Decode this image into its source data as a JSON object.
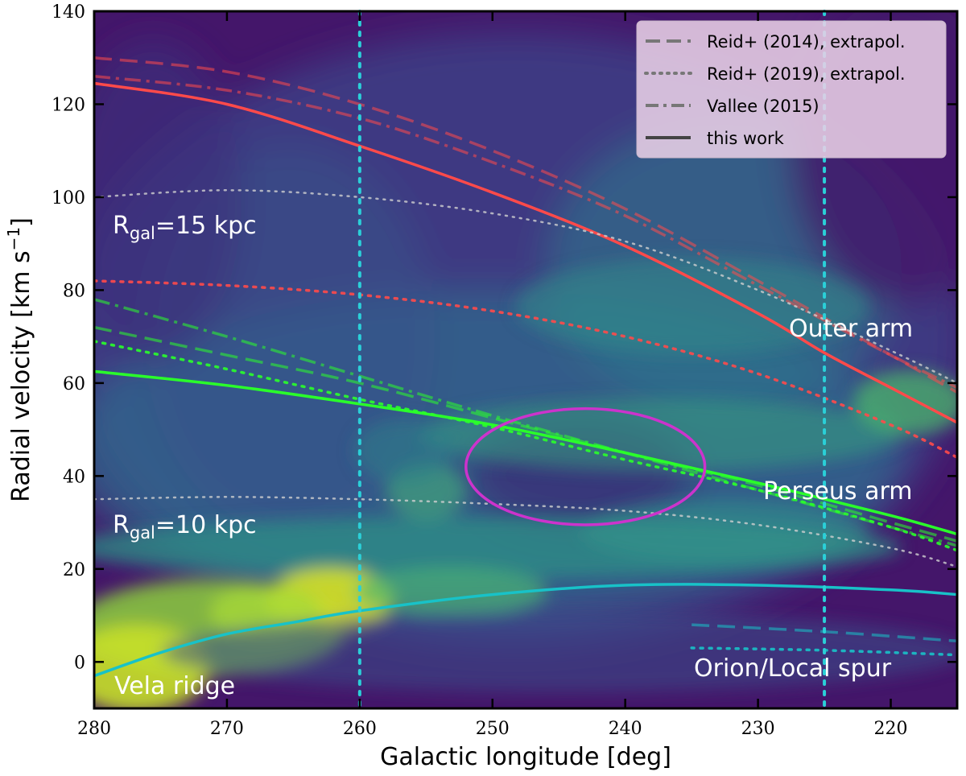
{
  "chart_data": {
    "type": "line",
    "xlabel": "Galactic longitude [deg]",
    "ylabel": "Radial velocity [km s",
    "ylabel_sup": "−1",
    "ylabel_close": "]",
    "xlim": [
      280,
      215
    ],
    "ylim": [
      -10,
      140
    ],
    "xticks": [
      280,
      270,
      260,
      250,
      240,
      230,
      220
    ],
    "yticks": [
      0,
      20,
      40,
      60,
      80,
      100,
      120,
      140
    ],
    "x_direction": "reversed",
    "background": "heatmap (viridis), bright emission along Vela ridge and Perseus/Outer arms",
    "colors": {
      "outer": "#ff4a4a",
      "perseus": "#2aff2a",
      "local": "#18c2c8",
      "rgal": "#cfcfcf",
      "vline": "#2ad0d8",
      "ellipse": "#cc33cc"
    },
    "legend": {
      "placement": "top-right",
      "entries": [
        {
          "label": "Reid+ (2014), extrapol.",
          "style": "dashed"
        },
        {
          "label": "Reid+ (2019), extrapol.",
          "style": "dotted"
        },
        {
          "label": "Vallee (2015)",
          "style": "dashdot"
        },
        {
          "label": "this work",
          "style": "solid"
        }
      ]
    },
    "vertical_lines": [
      260,
      225
    ],
    "ellipse": {
      "center": [
        243,
        42
      ],
      "x_halfwidth": 9,
      "y_halfwidth": 12.5
    },
    "series": [
      {
        "arm": "outer",
        "style": "solid",
        "x": [
          280,
          270,
          260,
          250,
          240,
          230,
          225,
          220,
          215
        ],
        "y": [
          124.5,
          120,
          111,
          101,
          89.5,
          75,
          66.5,
          59,
          51.5
        ]
      },
      {
        "arm": "outer",
        "style": "dashed",
        "x": [
          280,
          270,
          260,
          250,
          240,
          230,
          220,
          215
        ],
        "y": [
          130,
          127,
          120,
          110,
          97.5,
          82,
          66,
          58
        ]
      },
      {
        "arm": "outer",
        "style": "dashdot",
        "x": [
          280,
          270,
          260,
          250,
          240,
          230,
          220,
          215
        ],
        "y": [
          126,
          123,
          117,
          107.5,
          96,
          81,
          66,
          59
        ]
      },
      {
        "arm": "outer",
        "style": "dotted",
        "x": [
          280,
          270,
          260,
          250,
          240,
          230,
          220,
          215
        ],
        "y": [
          82,
          81,
          79,
          75.5,
          70,
          62,
          51,
          44
        ]
      },
      {
        "arm": "perseus",
        "style": "solid",
        "x": [
          280,
          270,
          260,
          250,
          240,
          230,
          220,
          215
        ],
        "y": [
          62.5,
          59.5,
          55.5,
          51,
          45,
          38.5,
          31.5,
          27.5
        ]
      },
      {
        "arm": "perseus",
        "style": "dashed",
        "x": [
          280,
          270,
          260,
          250,
          240,
          230,
          220,
          215
        ],
        "y": [
          72,
          66,
          60,
          52.5,
          45,
          38,
          30,
          26
        ]
      },
      {
        "arm": "perseus",
        "style": "dashdot",
        "x": [
          280,
          270,
          260,
          250,
          240,
          230,
          220,
          215
        ],
        "y": [
          78,
          70,
          61.5,
          53,
          45,
          37,
          29,
          25
        ]
      },
      {
        "arm": "perseus",
        "style": "dotted",
        "x": [
          280,
          270,
          260,
          250,
          240,
          230,
          220,
          215
        ],
        "y": [
          69,
          63,
          56.5,
          50.5,
          43.5,
          37,
          29,
          24
        ]
      },
      {
        "arm": "local",
        "style": "solid",
        "x": [
          280,
          275,
          270,
          265,
          260,
          250,
          240,
          230,
          220,
          215
        ],
        "y": [
          -3,
          2,
          6,
          8.5,
          11,
          14.5,
          16.5,
          16.5,
          15.5,
          14.5
        ]
      },
      {
        "arm": "local",
        "style": "dashed",
        "x": [
          235,
          225,
          215
        ],
        "y": [
          8,
          6.5,
          4.5
        ]
      },
      {
        "arm": "local",
        "style": "dotted",
        "x": [
          235,
          225,
          215
        ],
        "y": [
          3,
          2.5,
          1.5
        ]
      },
      {
        "arm": "rgal",
        "style": "dotted",
        "label": "15 kpc",
        "x": [
          280,
          270,
          260,
          250,
          240,
          230,
          220,
          215
        ],
        "y": [
          100,
          101.5,
          100,
          96.5,
          90.5,
          80,
          67,
          60
        ]
      },
      {
        "arm": "rgal",
        "style": "dotted",
        "label": "10 kpc",
        "x": [
          280,
          270,
          260,
          250,
          240,
          230,
          220,
          215
        ],
        "y": [
          35,
          35.5,
          35,
          34,
          32.5,
          29.5,
          24.5,
          20.5
        ]
      }
    ],
    "annotations": {
      "rgal15": "15 kpc",
      "rgal10": "10 kpc",
      "rgal_prefix": "R",
      "rgal_sub": "gal",
      "rgal_eq": "=",
      "outer_arm": "Outer arm",
      "perseus_arm": "Perseus arm",
      "orion_spur": "Orion/Local spur",
      "vela_ridge": "Vela ridge"
    }
  }
}
